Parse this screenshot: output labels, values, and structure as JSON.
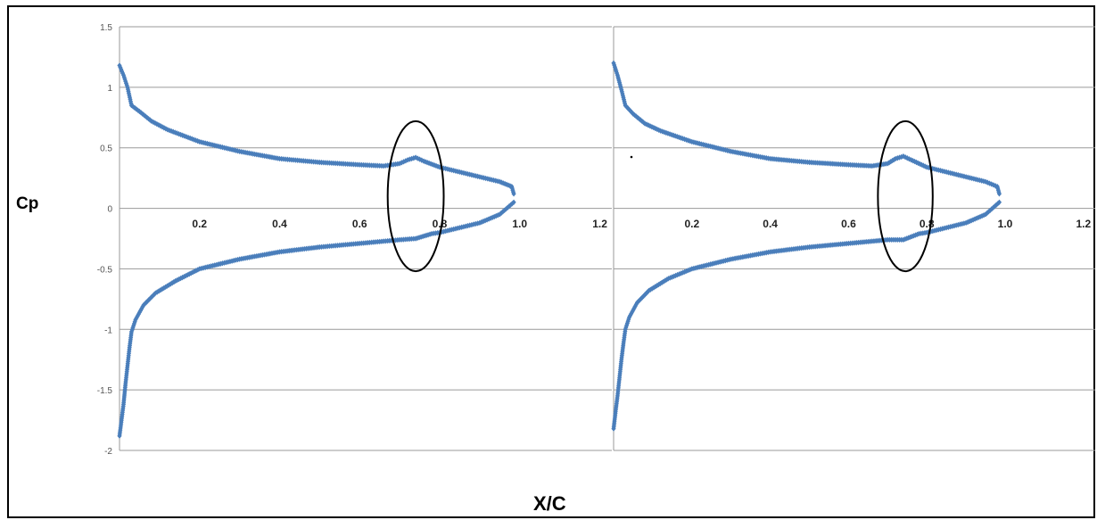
{
  "figure": {
    "ylabel": "Cp",
    "xlabel": "X/C",
    "marker_color": "#4a7ebb",
    "ellipse_color": "#000000"
  },
  "chart_data": [
    {
      "type": "scatter",
      "ylim": [
        -2,
        1.5
      ],
      "y_ticks": [
        "1.5",
        "1",
        "0.5",
        "0",
        "-0.5",
        "-1",
        "-1.5",
        "-2"
      ],
      "y_tick_values": [
        1.5,
        1,
        0.5,
        0,
        -0.5,
        -1,
        -1.5,
        -2
      ],
      "x_ticks": [
        "0.2",
        "0.4",
        "0.6",
        "0.8",
        "1.0",
        "1.2"
      ],
      "x_tick_values": [
        0.2,
        0.4,
        0.6,
        0.8,
        1.0,
        1.2
      ],
      "xlim": [
        0,
        1.23
      ],
      "grid": "horizontal",
      "upper_surface": {
        "x": [
          0.0,
          0.01,
          0.02,
          0.03,
          0.05,
          0.08,
          0.12,
          0.2,
          0.3,
          0.4,
          0.5,
          0.6,
          0.66,
          0.7,
          0.72,
          0.74,
          0.76,
          0.8,
          0.85,
          0.9,
          0.95,
          0.98,
          0.985
        ],
        "y": [
          1.18,
          1.1,
          1.0,
          0.85,
          0.8,
          0.72,
          0.65,
          0.55,
          0.47,
          0.41,
          0.38,
          0.36,
          0.35,
          0.37,
          0.4,
          0.42,
          0.39,
          0.34,
          0.3,
          0.26,
          0.22,
          0.18,
          0.12
        ]
      },
      "lower_surface": {
        "x": [
          0.0,
          0.005,
          0.01,
          0.015,
          0.02,
          0.025,
          0.03,
          0.04,
          0.06,
          0.09,
          0.14,
          0.2,
          0.3,
          0.4,
          0.5,
          0.6,
          0.7,
          0.74,
          0.78,
          0.8,
          0.85,
          0.9,
          0.95,
          0.985
        ],
        "y": [
          -1.88,
          -1.75,
          -1.62,
          -1.45,
          -1.3,
          -1.15,
          -1.02,
          -0.92,
          -0.8,
          -0.7,
          -0.6,
          -0.5,
          -0.42,
          -0.36,
          -0.32,
          -0.29,
          -0.26,
          -0.25,
          -0.21,
          -0.2,
          -0.16,
          -0.12,
          -0.05,
          0.05
        ]
      },
      "annotation_ellipse": {
        "center_x": 0.74,
        "center_y": 0.1,
        "rx": 0.07,
        "ry": 0.62
      }
    },
    {
      "type": "scatter",
      "ylim": [
        -2,
        1.5
      ],
      "y_ticks": [],
      "x_ticks": [
        "0.2",
        "0.4",
        "0.6",
        "0.8",
        "1.0",
        "1.2"
      ],
      "x_tick_values": [
        0.2,
        0.4,
        0.6,
        0.8,
        1.0,
        1.2
      ],
      "xlim": [
        0,
        1.23
      ],
      "grid": "horizontal",
      "upper_surface": {
        "x": [
          0.0,
          0.01,
          0.02,
          0.03,
          0.05,
          0.08,
          0.12,
          0.2,
          0.3,
          0.4,
          0.5,
          0.6,
          0.66,
          0.7,
          0.72,
          0.74,
          0.76,
          0.8,
          0.85,
          0.9,
          0.95,
          0.98,
          0.985
        ],
        "y": [
          1.2,
          1.1,
          0.98,
          0.85,
          0.78,
          0.7,
          0.64,
          0.55,
          0.47,
          0.41,
          0.38,
          0.36,
          0.35,
          0.37,
          0.41,
          0.43,
          0.4,
          0.34,
          0.3,
          0.26,
          0.22,
          0.18,
          0.12
        ]
      },
      "lower_surface": {
        "x": [
          0.0,
          0.005,
          0.01,
          0.015,
          0.02,
          0.025,
          0.03,
          0.04,
          0.06,
          0.09,
          0.14,
          0.2,
          0.3,
          0.4,
          0.5,
          0.6,
          0.7,
          0.74,
          0.78,
          0.8,
          0.85,
          0.9,
          0.95,
          0.985
        ],
        "y": [
          -1.82,
          -1.68,
          -1.55,
          -1.4,
          -1.25,
          -1.12,
          -1.0,
          -0.9,
          -0.78,
          -0.68,
          -0.58,
          -0.5,
          -0.42,
          -0.36,
          -0.32,
          -0.29,
          -0.26,
          -0.26,
          -0.21,
          -0.2,
          -0.16,
          -0.12,
          -0.05,
          0.05
        ]
      },
      "annotation_ellipse": {
        "center_x": 0.745,
        "center_y": 0.1,
        "rx": 0.07,
        "ry": 0.62
      }
    }
  ]
}
